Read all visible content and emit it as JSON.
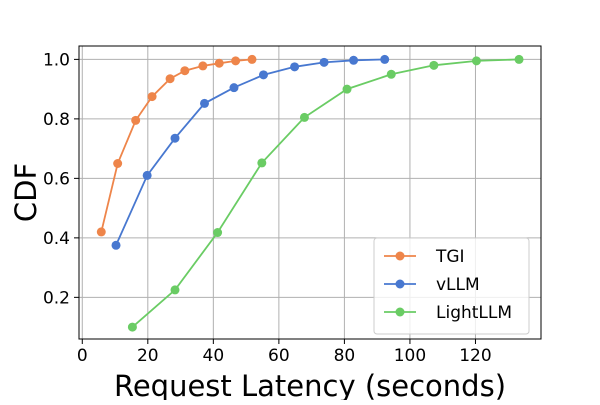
{
  "chart_data": {
    "type": "line",
    "title": "",
    "xlabel": "Request Latency (seconds)",
    "ylabel": "CDF",
    "xlim": [
      -1,
      140
    ],
    "ylim": [
      0.06,
      1.045
    ],
    "xticks": [
      0,
      20,
      40,
      60,
      80,
      100,
      120
    ],
    "yticks": [
      0.2,
      0.4,
      0.6,
      0.8,
      1.0
    ],
    "xtick_labels": [
      "0",
      "20",
      "40",
      "60",
      "80",
      "100",
      "120"
    ],
    "ytick_labels": [
      "0.2",
      "0.4",
      "0.6",
      "0.8",
      "1.0"
    ],
    "grid": true,
    "legend_position": "lower-right",
    "series": [
      {
        "name": "TGI",
        "color": "#ee854a",
        "x": [
          5.8,
          10.8,
          16.3,
          21.3,
          26.8,
          31.3,
          36.8,
          41.8,
          46.8,
          51.8
        ],
        "y": [
          0.42,
          0.65,
          0.795,
          0.875,
          0.935,
          0.962,
          0.978,
          0.987,
          0.995,
          1.0
        ]
      },
      {
        "name": "vLLM",
        "color": "#4878d0",
        "x": [
          10.3,
          19.8,
          28.3,
          37.3,
          46.3,
          55.3,
          64.8,
          73.8,
          82.8,
          92.3
        ],
        "y": [
          0.375,
          0.61,
          0.735,
          0.852,
          0.905,
          0.948,
          0.975,
          0.99,
          0.997,
          1.0
        ]
      },
      {
        "name": "LightLLM",
        "color": "#6acc64",
        "x": [
          15.3,
          28.3,
          41.3,
          54.8,
          67.8,
          80.8,
          94.3,
          107.3,
          120.3,
          133.3
        ],
        "y": [
          0.1,
          0.225,
          0.418,
          0.652,
          0.805,
          0.9,
          0.95,
          0.98,
          0.995,
          1.0
        ]
      }
    ]
  }
}
